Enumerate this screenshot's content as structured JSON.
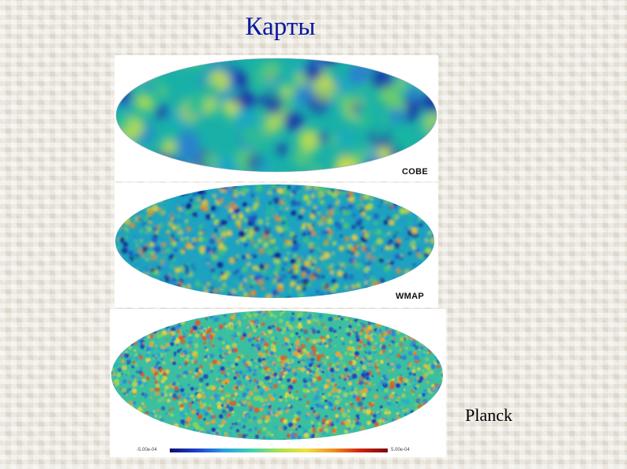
{
  "slide": {
    "title": "Карты",
    "planck_label": "Planck"
  },
  "maps": [
    {
      "label": "COBE",
      "colors": [
        "#1a2fa8",
        "#2a7fd0",
        "#1aa7c8",
        "#19b6a0",
        "#2cc090",
        "#6fd06a",
        "#c7e04a"
      ]
    },
    {
      "label": "WMAP",
      "colors": [
        "#0f1f8a",
        "#1f55c0",
        "#1a98c8",
        "#1db2a6",
        "#47c27a",
        "#a8d64a",
        "#e9c93a",
        "#e58a2e"
      ]
    },
    {
      "label": "",
      "colors": [
        "#1c3fb8",
        "#2c82d8",
        "#20b0c8",
        "#3cc39a",
        "#8cd65a",
        "#e0d440",
        "#f0a030",
        "#e05a26"
      ]
    }
  ],
  "colorbar": {
    "min": "-5.00e-04",
    "max": "5.00e-04",
    "colors": [
      "#0a1270",
      "#1f3fd0",
      "#28a0e0",
      "#3fd0b0",
      "#a8e050",
      "#f0e040",
      "#f09020",
      "#d02010",
      "#7a0a08"
    ]
  }
}
